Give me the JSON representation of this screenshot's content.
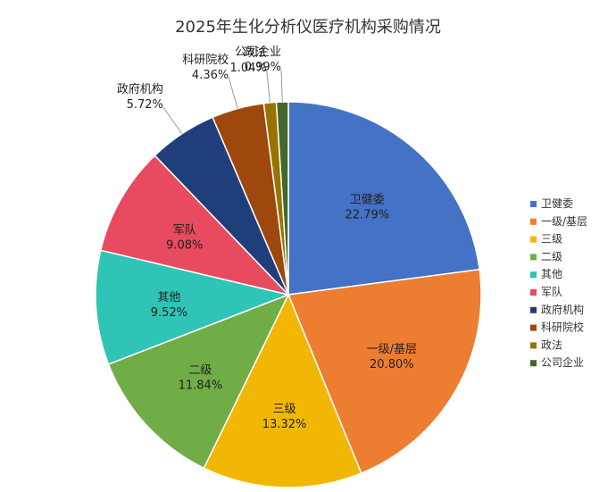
{
  "chart_data": {
    "type": "pie",
    "title": "2025年生化分析仪医疗机构采购情况",
    "legend_position": "right",
    "slices": [
      {
        "name": "卫健委",
        "value": 22.79,
        "label": "22.79%",
        "color": "#4472C4"
      },
      {
        "name": "一级/基层",
        "value": 20.8,
        "label": "20.80%",
        "color": "#ED7D31"
      },
      {
        "name": "三级",
        "value": 13.32,
        "label": "13.32%",
        "color": "#F2B705"
      },
      {
        "name": "二级",
        "value": 11.84,
        "label": "11.84%",
        "color": "#70AD47"
      },
      {
        "name": "其他",
        "value": 9.52,
        "label": "9.52%",
        "color": "#2EC4B6"
      },
      {
        "name": "军队",
        "value": 9.08,
        "label": "9.08%",
        "color": "#E84A5F"
      },
      {
        "name": "政府机构",
        "value": 5.72,
        "label": "5.72%",
        "color": "#203F7A"
      },
      {
        "name": "科研院校",
        "value": 4.36,
        "label": "4.36%",
        "color": "#9E480E"
      },
      {
        "name": "政法",
        "value": 1.04,
        "label": "1.04%",
        "color": "#997300"
      },
      {
        "name": "公司企业",
        "value": 0.99,
        "label": "0.99%",
        "color": "#43682B"
      }
    ]
  }
}
